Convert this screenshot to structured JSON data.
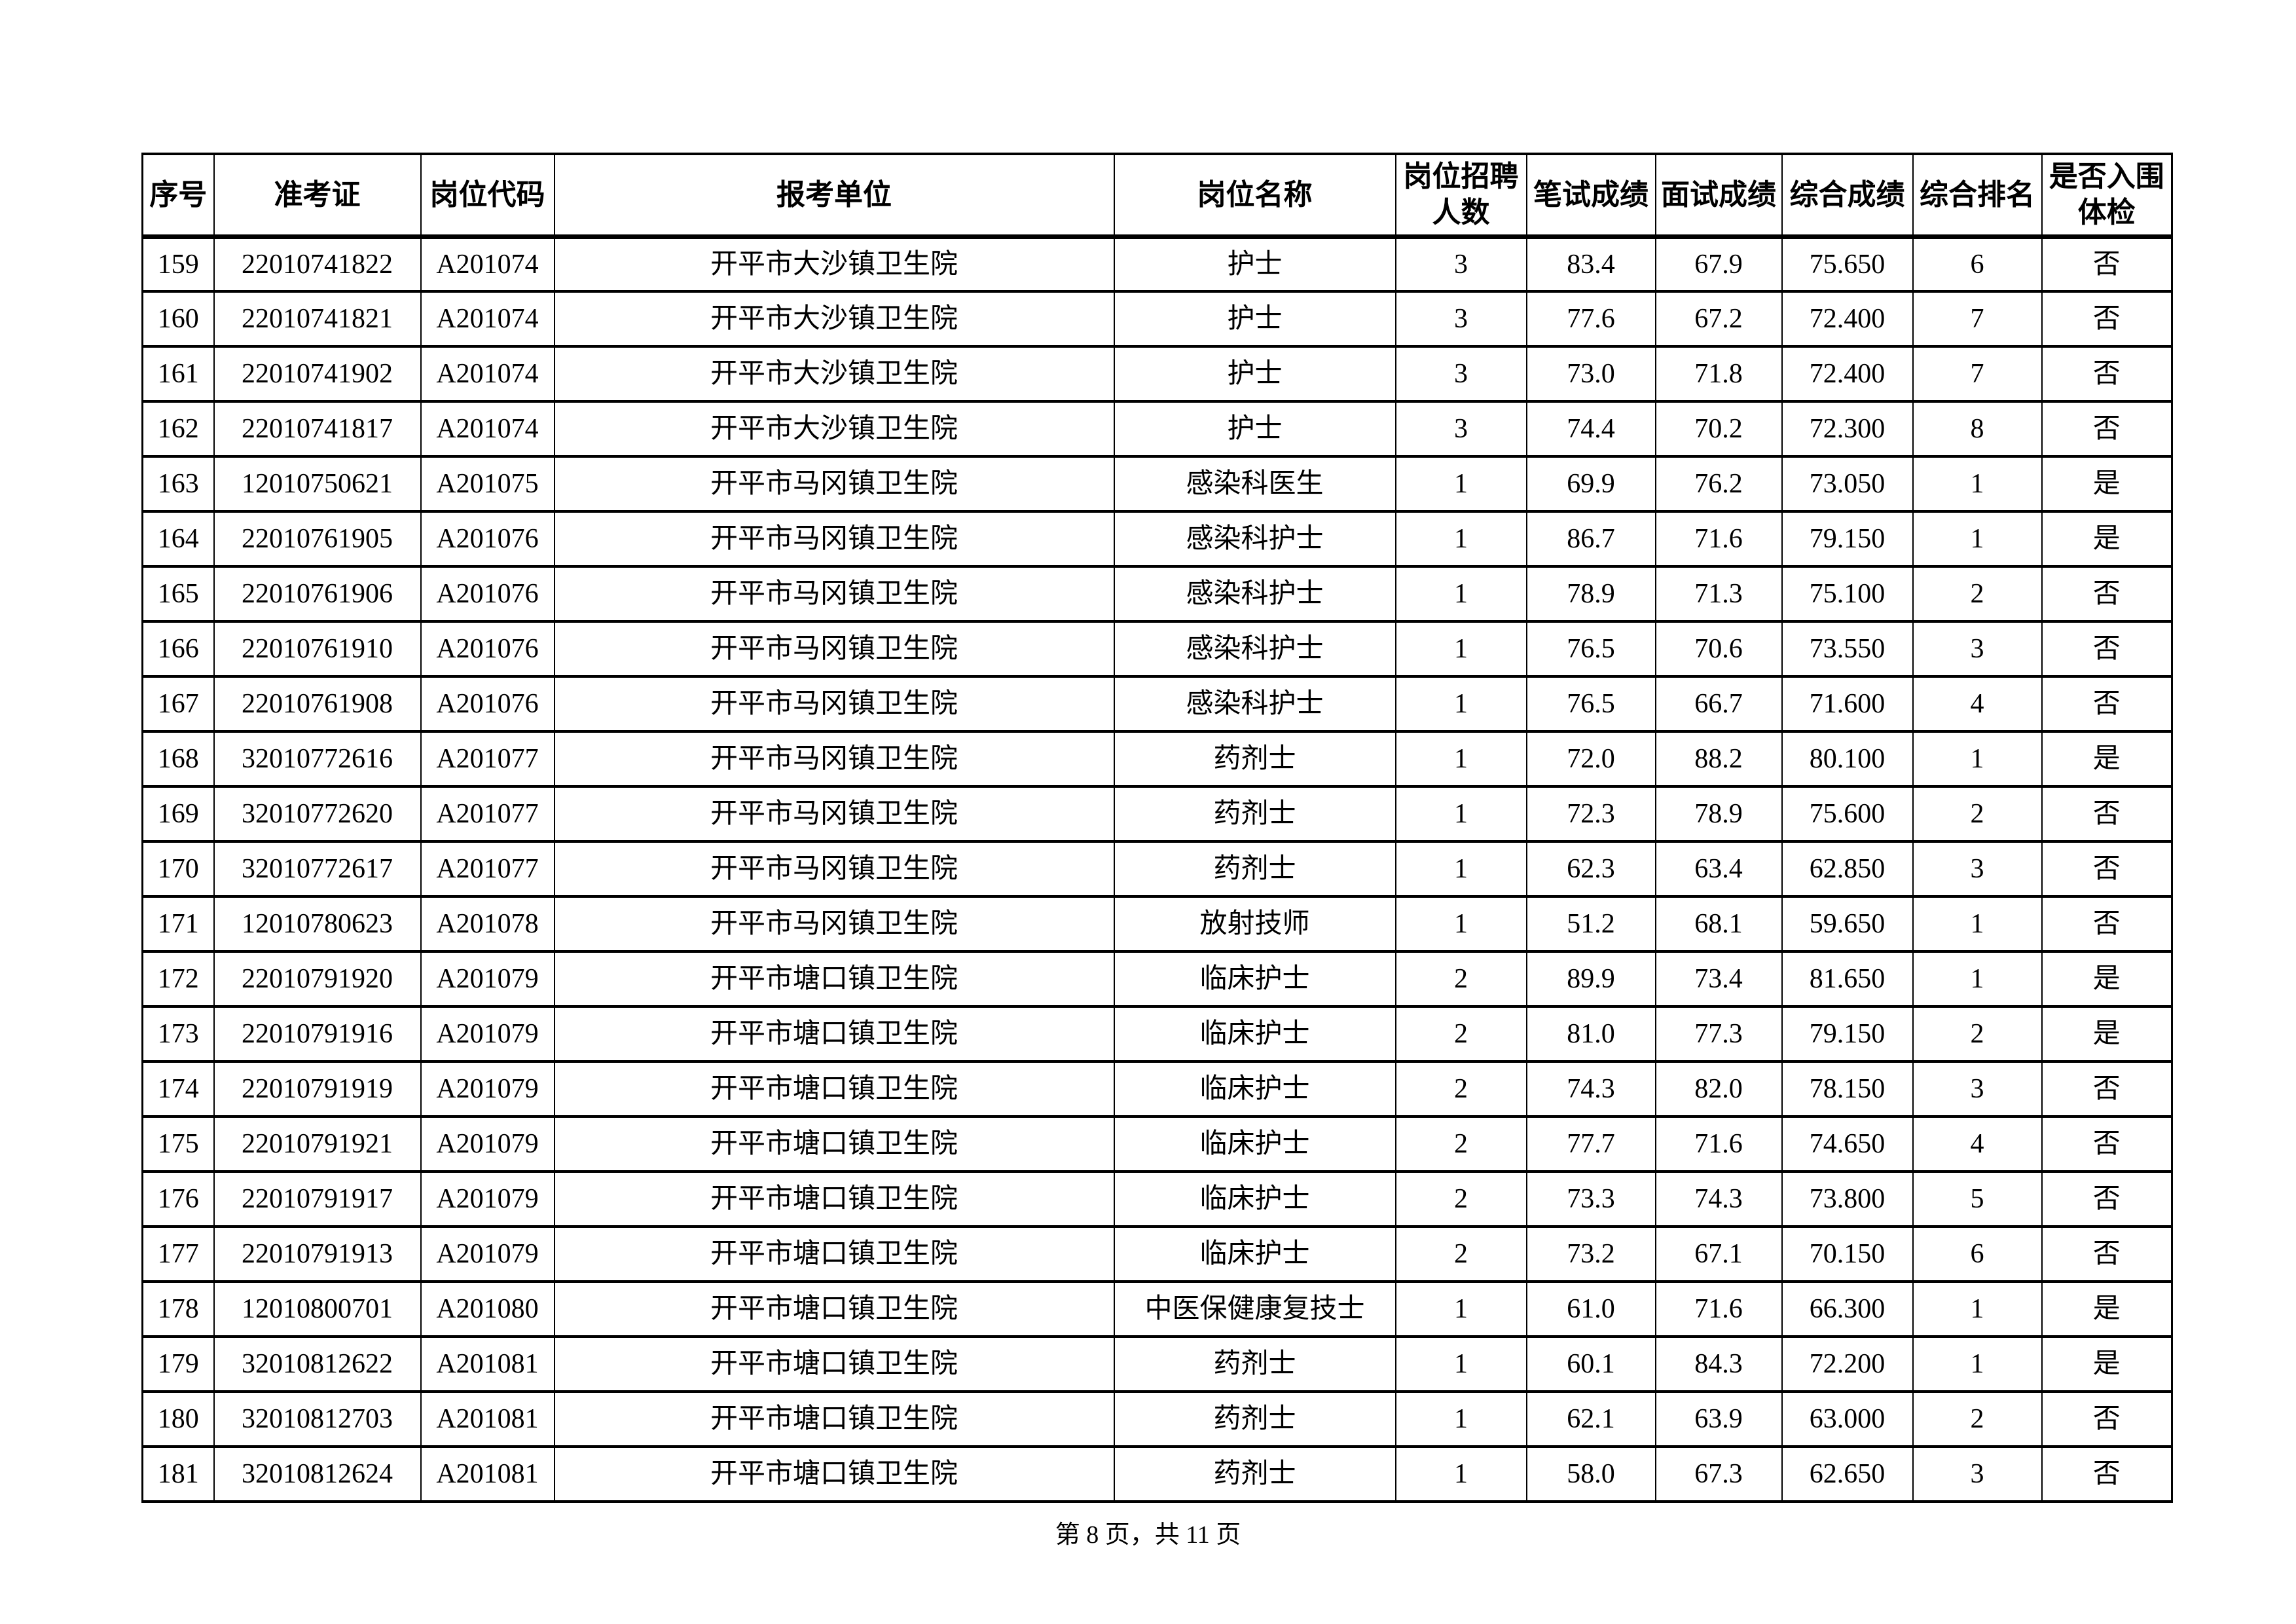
{
  "colors": {
    "text": "#000000",
    "background": "#ffffff",
    "border": "#000000"
  },
  "table": {
    "headers": [
      "序号",
      "准考证",
      "岗位代码",
      "报考单位",
      "岗位名称",
      "岗位招聘人数",
      "笔试成绩",
      "面试成绩",
      "综合成绩",
      "综合排名",
      "是否入围体检"
    ],
    "rows": [
      [
        "159",
        "22010741822",
        "A201074",
        "开平市大沙镇卫生院",
        "护士",
        "3",
        "83.4",
        "67.9",
        "75.650",
        "6",
        "否"
      ],
      [
        "160",
        "22010741821",
        "A201074",
        "开平市大沙镇卫生院",
        "护士",
        "3",
        "77.6",
        "67.2",
        "72.400",
        "7",
        "否"
      ],
      [
        "161",
        "22010741902",
        "A201074",
        "开平市大沙镇卫生院",
        "护士",
        "3",
        "73.0",
        "71.8",
        "72.400",
        "7",
        "否"
      ],
      [
        "162",
        "22010741817",
        "A201074",
        "开平市大沙镇卫生院",
        "护士",
        "3",
        "74.4",
        "70.2",
        "72.300",
        "8",
        "否"
      ],
      [
        "163",
        "12010750621",
        "A201075",
        "开平市马冈镇卫生院",
        "感染科医生",
        "1",
        "69.9",
        "76.2",
        "73.050",
        "1",
        "是"
      ],
      [
        "164",
        "22010761905",
        "A201076",
        "开平市马冈镇卫生院",
        "感染科护士",
        "1",
        "86.7",
        "71.6",
        "79.150",
        "1",
        "是"
      ],
      [
        "165",
        "22010761906",
        "A201076",
        "开平市马冈镇卫生院",
        "感染科护士",
        "1",
        "78.9",
        "71.3",
        "75.100",
        "2",
        "否"
      ],
      [
        "166",
        "22010761910",
        "A201076",
        "开平市马冈镇卫生院",
        "感染科护士",
        "1",
        "76.5",
        "70.6",
        "73.550",
        "3",
        "否"
      ],
      [
        "167",
        "22010761908",
        "A201076",
        "开平市马冈镇卫生院",
        "感染科护士",
        "1",
        "76.5",
        "66.7",
        "71.600",
        "4",
        "否"
      ],
      [
        "168",
        "32010772616",
        "A201077",
        "开平市马冈镇卫生院",
        "药剂士",
        "1",
        "72.0",
        "88.2",
        "80.100",
        "1",
        "是"
      ],
      [
        "169",
        "32010772620",
        "A201077",
        "开平市马冈镇卫生院",
        "药剂士",
        "1",
        "72.3",
        "78.9",
        "75.600",
        "2",
        "否"
      ],
      [
        "170",
        "32010772617",
        "A201077",
        "开平市马冈镇卫生院",
        "药剂士",
        "1",
        "62.3",
        "63.4",
        "62.850",
        "3",
        "否"
      ],
      [
        "171",
        "12010780623",
        "A201078",
        "开平市马冈镇卫生院",
        "放射技师",
        "1",
        "51.2",
        "68.1",
        "59.650",
        "1",
        "否"
      ],
      [
        "172",
        "22010791920",
        "A201079",
        "开平市塘口镇卫生院",
        "临床护士",
        "2",
        "89.9",
        "73.4",
        "81.650",
        "1",
        "是"
      ],
      [
        "173",
        "22010791916",
        "A201079",
        "开平市塘口镇卫生院",
        "临床护士",
        "2",
        "81.0",
        "77.3",
        "79.150",
        "2",
        "是"
      ],
      [
        "174",
        "22010791919",
        "A201079",
        "开平市塘口镇卫生院",
        "临床护士",
        "2",
        "74.3",
        "82.0",
        "78.150",
        "3",
        "否"
      ],
      [
        "175",
        "22010791921",
        "A201079",
        "开平市塘口镇卫生院",
        "临床护士",
        "2",
        "77.7",
        "71.6",
        "74.650",
        "4",
        "否"
      ],
      [
        "176",
        "22010791917",
        "A201079",
        "开平市塘口镇卫生院",
        "临床护士",
        "2",
        "73.3",
        "74.3",
        "73.800",
        "5",
        "否"
      ],
      [
        "177",
        "22010791913",
        "A201079",
        "开平市塘口镇卫生院",
        "临床护士",
        "2",
        "73.2",
        "67.1",
        "70.150",
        "6",
        "否"
      ],
      [
        "178",
        "12010800701",
        "A201080",
        "开平市塘口镇卫生院",
        "中医保健康复技士",
        "1",
        "61.0",
        "71.6",
        "66.300",
        "1",
        "是"
      ],
      [
        "179",
        "32010812622",
        "A201081",
        "开平市塘口镇卫生院",
        "药剂士",
        "1",
        "60.1",
        "84.3",
        "72.200",
        "1",
        "是"
      ],
      [
        "180",
        "32010812703",
        "A201081",
        "开平市塘口镇卫生院",
        "药剂士",
        "1",
        "62.1",
        "63.9",
        "63.000",
        "2",
        "否"
      ],
      [
        "181",
        "32010812624",
        "A201081",
        "开平市塘口镇卫生院",
        "药剂士",
        "1",
        "58.0",
        "67.3",
        "62.650",
        "3",
        "否"
      ]
    ]
  },
  "footer": {
    "page_label": "第 8 页，共 11 页"
  }
}
